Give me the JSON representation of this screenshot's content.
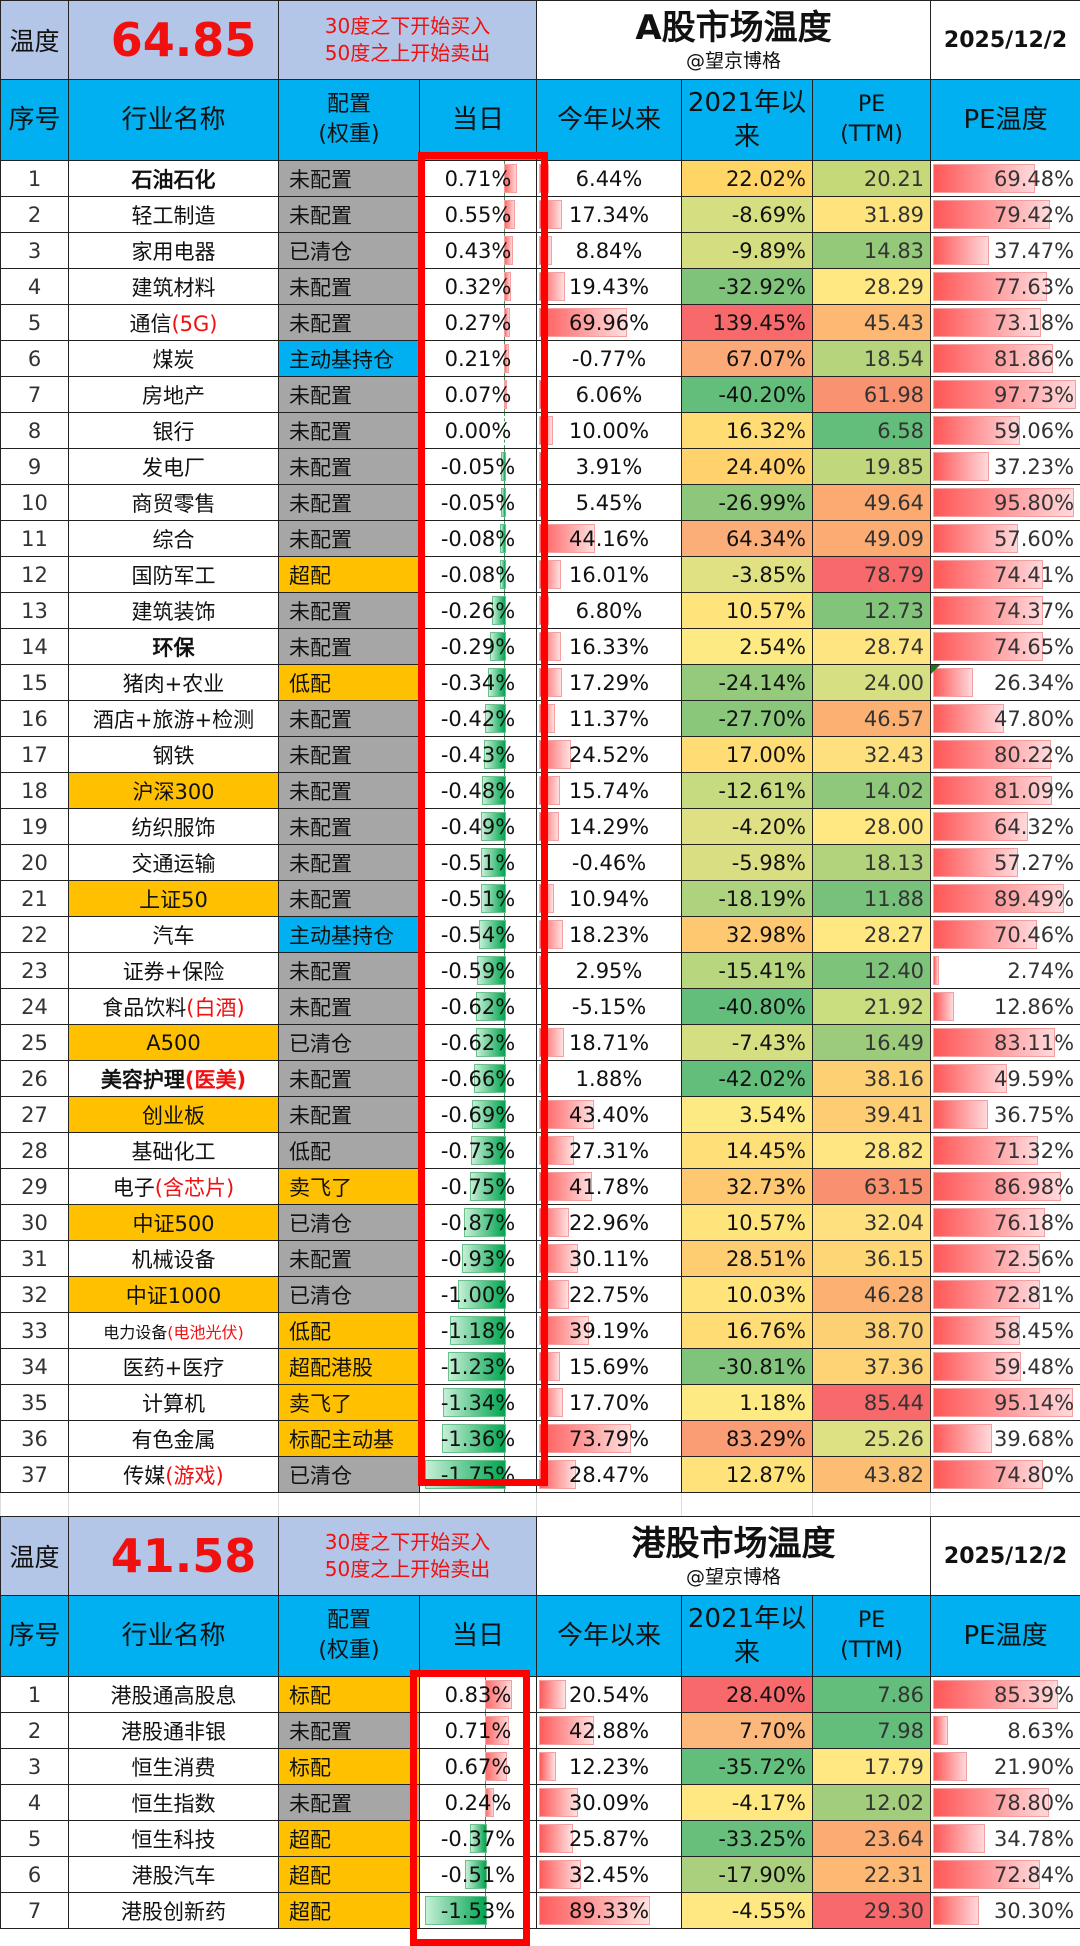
{
  "a_share": {
    "temp_label": "温度",
    "temp_value": "64.85",
    "rule_line1": "30度之下开始买入",
    "rule_line2": "50度之上开始卖出",
    "title": "A股市场温度",
    "author": "@望京博格",
    "date": "2025/12/2",
    "headers": {
      "seq": "序号",
      "name": "行业名称",
      "cfg1": "配置",
      "cfg2": "(权重)",
      "day": "当日",
      "ytd": "今年以来",
      "since1": "2021年以",
      "since2": "来",
      "pe1": "PE",
      "pe2": "(TTM)",
      "pet": "PE温度"
    },
    "rows": [
      {
        "n": "1",
        "name": "石油石化",
        "suffix": "",
        "cfg": "未配置",
        "cfgc": "gray",
        "day": "0.71%",
        "dv": 0.71,
        "ytd": "6.44%",
        "yv": 6.44,
        "since": "22.02%",
        "sc": "#ffd666",
        "pe": "20.21",
        "pc": "#c6d979",
        "pet": "69.48%",
        "tv": 69.48,
        "bold": true
      },
      {
        "n": "2",
        "name": "轻工制造",
        "suffix": "",
        "cfg": "未配置",
        "cfgc": "gray",
        "day": "0.55%",
        "dv": 0.55,
        "ytd": "17.34%",
        "yv": 17.34,
        "since": "-8.69%",
        "sc": "#d6de82",
        "pe": "31.89",
        "pc": "#ffe47e",
        "pet": "79.42%",
        "tv": 79.42
      },
      {
        "n": "3",
        "name": "家用电器",
        "suffix": "",
        "cfg": "已清仓",
        "cfgc": "gray",
        "day": "0.43%",
        "dv": 0.43,
        "ytd": "8.84%",
        "yv": 8.84,
        "since": "-9.89%",
        "sc": "#d4dd80",
        "pe": "14.83",
        "pc": "#94c97a",
        "pet": "37.47%",
        "tv": 37.47
      },
      {
        "n": "4",
        "name": "建筑材料",
        "suffix": "",
        "cfg": "未配置",
        "cfgc": "gray",
        "day": "0.32%",
        "dv": 0.32,
        "ytd": "19.43%",
        "yv": 19.43,
        "since": "-32.92%",
        "sc": "#7fc27a",
        "pe": "28.29",
        "pc": "#ffe882",
        "pet": "77.63%",
        "tv": 77.63
      },
      {
        "n": "5",
        "name": "通信",
        "suffix": "(5G)",
        "cfg": "未配置",
        "cfgc": "gray",
        "day": "0.27%",
        "dv": 0.27,
        "ytd": "69.96%",
        "yv": 69.96,
        "since": "139.45%",
        "sc": "#f8696b",
        "pe": "45.43",
        "pc": "#fdb873",
        "pet": "73.18%",
        "tv": 73.18
      },
      {
        "n": "6",
        "name": "煤炭",
        "suffix": "",
        "cfg": "主动基持仓",
        "cfgc": "blue",
        "day": "0.21%",
        "dv": 0.21,
        "ytd": "-0.77%",
        "yv": 0,
        "since": "67.07%",
        "sc": "#fbaa77",
        "pe": "18.54",
        "pc": "#b5d47c",
        "pet": "81.86%",
        "tv": 81.86
      },
      {
        "n": "7",
        "name": "房地产",
        "suffix": "",
        "cfg": "未配置",
        "cfgc": "gray",
        "day": "0.07%",
        "dv": 0.07,
        "ytd": "6.06%",
        "yv": 6.06,
        "since": "-40.20%",
        "sc": "#63be7b",
        "pe": "61.98",
        "pc": "#f99270",
        "pet": "97.73%",
        "tv": 97.73
      },
      {
        "n": "8",
        "name": "银行",
        "suffix": "",
        "cfg": "未配置",
        "cfgc": "gray",
        "day": "0.00%",
        "dv": 0.0,
        "ytd": "10.00%",
        "yv": 10.0,
        "since": "16.32%",
        "sc": "#ffdd74",
        "pe": "6.58",
        "pc": "#63be7b",
        "pet": "59.06%",
        "tv": 59.06
      },
      {
        "n": "9",
        "name": "发电厂",
        "suffix": "",
        "cfg": "未配置",
        "cfgc": "gray",
        "day": "-0.05%",
        "dv": -0.05,
        "ytd": "3.91%",
        "yv": 3.91,
        "since": "24.40%",
        "sc": "#ffd26c",
        "pe": "19.85",
        "pc": "#c0d77c",
        "pet": "37.23%",
        "tv": 37.23
      },
      {
        "n": "10",
        "name": "商贸零售",
        "suffix": "",
        "cfg": "未配置",
        "cfgc": "gray",
        "day": "-0.05%",
        "dv": -0.05,
        "ytd": "5.45%",
        "yv": 5.45,
        "since": "-26.99%",
        "sc": "#8cc77b",
        "pe": "49.64",
        "pc": "#fcaa72",
        "pet": "95.80%",
        "tv": 95.8
      },
      {
        "n": "11",
        "name": "综合",
        "suffix": "",
        "cfg": "未配置",
        "cfgc": "gray",
        "day": "-0.08%",
        "dv": -0.08,
        "ytd": "44.16%",
        "yv": 44.16,
        "since": "64.34%",
        "sc": "#fcae78",
        "pe": "49.09",
        "pc": "#fcac73",
        "pet": "57.60%",
        "tv": 57.6
      },
      {
        "n": "12",
        "name": "国防军工",
        "suffix": "",
        "cfg": "超配",
        "cfgc": "gold",
        "day": "-0.08%",
        "dv": -0.08,
        "ytd": "16.01%",
        "yv": 16.01,
        "since": "-3.85%",
        "sc": "#e0e183",
        "pe": "78.79",
        "pc": "#f8696b",
        "pet": "74.41%",
        "tv": 74.41
      },
      {
        "n": "13",
        "name": "建筑装饰",
        "suffix": "",
        "cfg": "未配置",
        "cfgc": "gray",
        "day": "-0.26%",
        "dv": -0.26,
        "ytd": "6.80%",
        "yv": 6.8,
        "since": "10.57%",
        "sc": "#ffe47c",
        "pe": "12.73",
        "pc": "#82c47a",
        "pet": "74.37%",
        "tv": 74.37
      },
      {
        "n": "14",
        "name": "环保",
        "suffix": "",
        "cfg": "未配置",
        "cfgc": "gray",
        "day": "-0.29%",
        "dv": -0.29,
        "ytd": "16.33%",
        "yv": 16.33,
        "since": "2.54%",
        "sc": "#feea82",
        "pe": "28.74",
        "pc": "#ffe582",
        "pet": "74.65%",
        "tv": 74.65,
        "bold": true
      },
      {
        "n": "15",
        "name": "猪肉+农业",
        "suffix": "",
        "cfg": "低配",
        "cfgc": "gold",
        "day": "-0.34%",
        "dv": -0.34,
        "ytd": "17.29%",
        "yv": 17.29,
        "since": "-24.14%",
        "sc": "#95ca7c",
        "pe": "24.00",
        "pc": "#d6df82",
        "pet": "26.34%",
        "tv": 26.34,
        "tri": true
      },
      {
        "n": "16",
        "name": "酒店+旅游+检测",
        "suffix": "",
        "cfg": "未配置",
        "cfgc": "gray",
        "day": "-0.42%",
        "dv": -0.42,
        "ytd": "11.37%",
        "yv": 11.37,
        "since": "-27.70%",
        "sc": "#8ac77b",
        "pe": "46.57",
        "pc": "#fcb173",
        "pet": "47.80%",
        "tv": 47.8
      },
      {
        "n": "17",
        "name": "钢铁",
        "suffix": "",
        "cfg": "未配置",
        "cfgc": "gray",
        "day": "-0.43%",
        "dv": -0.43,
        "ytd": "24.52%",
        "yv": 24.52,
        "since": "17.00%",
        "sc": "#ffdc74",
        "pe": "32.43",
        "pc": "#ffe07e",
        "pet": "80.22%",
        "tv": 80.22
      },
      {
        "n": "18",
        "name": "沪深300",
        "suffix": "",
        "idx": true,
        "cfg": "未配置",
        "cfgc": "gray",
        "day": "-0.48%",
        "dv": -0.48,
        "ytd": "15.74%",
        "yv": 15.74,
        "since": "-12.61%",
        "sc": "#c6da80",
        "pe": "14.02",
        "pc": "#8fc87a",
        "pet": "81.09%",
        "tv": 81.09
      },
      {
        "n": "19",
        "name": "纺织服饰",
        "suffix": "",
        "cfg": "未配置",
        "cfgc": "gray",
        "day": "-0.49%",
        "dv": -0.49,
        "ytd": "14.29%",
        "yv": 14.29,
        "since": "-4.20%",
        "sc": "#dfe083",
        "pe": "28.00",
        "pc": "#ffe882",
        "pet": "64.32%",
        "tv": 64.32
      },
      {
        "n": "20",
        "name": "交通运输",
        "suffix": "",
        "cfg": "未配置",
        "cfgc": "gray",
        "day": "-0.51%",
        "dv": -0.51,
        "ytd": "-0.46%",
        "yv": 0,
        "since": "-5.98%",
        "sc": "#d9de82",
        "pe": "18.13",
        "pc": "#b2d37c",
        "pet": "57.27%",
        "tv": 57.27
      },
      {
        "n": "21",
        "name": "上证50",
        "suffix": "",
        "idx": true,
        "cfg": "未配置",
        "cfgc": "gray",
        "day": "-0.51%",
        "dv": -0.51,
        "ytd": "10.94%",
        "yv": 10.94,
        "since": "-18.19%",
        "sc": "#aed27d",
        "pe": "11.88",
        "pc": "#78c17a",
        "pet": "89.49%",
        "tv": 89.49
      },
      {
        "n": "22",
        "name": "汽车",
        "suffix": "",
        "cfg": "主动基持仓",
        "cfgc": "blue",
        "day": "-0.54%",
        "dv": -0.54,
        "ytd": "18.23%",
        "yv": 18.23,
        "since": "32.98%",
        "sc": "#fec870",
        "pe": "28.27",
        "pc": "#ffe882",
        "pet": "70.46%",
        "tv": 70.46
      },
      {
        "n": "23",
        "name": "证券+保险",
        "suffix": "",
        "cfg": "未配置",
        "cfgc": "gray",
        "day": "-0.59%",
        "dv": -0.59,
        "ytd": "2.95%",
        "yv": 2.95,
        "since": "-15.41%",
        "sc": "#b8d67e",
        "pe": "12.40",
        "pc": "#7ec37a",
        "pet": "2.74%",
        "tv": 2.74
      },
      {
        "n": "24",
        "name": "食品饮料",
        "suffix": "(白酒)",
        "cfg": "未配置",
        "cfgc": "gray",
        "day": "-0.62%",
        "dv": -0.62,
        "ytd": "-5.15%",
        "yv": 0,
        "since": "-40.80%",
        "sc": "#63be7b",
        "pe": "21.92",
        "pc": "#cade80",
        "pet": "12.86%",
        "tv": 12.86
      },
      {
        "n": "25",
        "name": "A500",
        "suffix": "",
        "idx": true,
        "cfg": "已清仓",
        "cfgc": "gray",
        "day": "-0.62%",
        "dv": -0.62,
        "ytd": "18.71%",
        "yv": 18.71,
        "since": "-7.43%",
        "sc": "#d6de82",
        "pe": "16.49",
        "pc": "#9ccb7b",
        "pet": "83.11%",
        "tv": 83.11
      },
      {
        "n": "26",
        "name": "美容护理",
        "suffix": "(医美)",
        "cfg": "未配置",
        "cfgc": "gray",
        "day": "-0.66%",
        "dv": -0.66,
        "ytd": "1.88%",
        "yv": 1.88,
        "since": "-42.02%",
        "sc": "#63be7b",
        "pe": "38.16",
        "pc": "#fed074",
        "pet": "49.59%",
        "tv": 49.59,
        "bold": true
      },
      {
        "n": "27",
        "name": "创业板",
        "suffix": "",
        "idx": true,
        "cfg": "未配置",
        "cfgc": "gray",
        "day": "-0.69%",
        "dv": -0.69,
        "ytd": "43.40%",
        "yv": 43.4,
        "since": "3.54%",
        "sc": "#feea82",
        "pe": "39.41",
        "pc": "#fecd73",
        "pet": "36.75%",
        "tv": 36.75
      },
      {
        "n": "28",
        "name": "基础化工",
        "suffix": "",
        "cfg": "低配",
        "cfgc": "gray",
        "day": "-0.73%",
        "dv": -0.73,
        "ytd": "27.31%",
        "yv": 27.31,
        "since": "14.45%",
        "sc": "#ffe078",
        "pe": "28.82",
        "pc": "#ffe682",
        "pet": "71.32%",
        "tv": 71.32
      },
      {
        "n": "29",
        "name": "电子",
        "suffix": "(含芯片)",
        "cfg": "卖飞了",
        "cfgc": "gold",
        "day": "-0.75%",
        "dv": -0.75,
        "ytd": "41.78%",
        "yv": 41.78,
        "since": "32.73%",
        "sc": "#fec870",
        "pe": "63.15",
        "pc": "#f99070",
        "pet": "86.98%",
        "tv": 86.98
      },
      {
        "n": "30",
        "name": "中证500",
        "suffix": "",
        "idx": true,
        "cfg": "已清仓",
        "cfgc": "gray",
        "day": "-0.87%",
        "dv": -0.87,
        "ytd": "22.96%",
        "yv": 22.96,
        "since": "10.57%",
        "sc": "#ffe47c",
        "pe": "32.04",
        "pc": "#ffe07e",
        "pet": "76.18%",
        "tv": 76.18
      },
      {
        "n": "31",
        "name": "机械设备",
        "suffix": "",
        "cfg": "未配置",
        "cfgc": "gray",
        "day": "-0.93%",
        "dv": -0.93,
        "ytd": "30.11%",
        "yv": 30.11,
        "since": "28.51%",
        "sc": "#fecd72",
        "pe": "36.15",
        "pc": "#fed676",
        "pet": "72.56%",
        "tv": 72.56
      },
      {
        "n": "32",
        "name": "中证1000",
        "suffix": "",
        "idx": true,
        "cfg": "已清仓",
        "cfgc": "gray",
        "day": "-1.00%",
        "dv": -1.0,
        "ytd": "22.75%",
        "yv": 22.75,
        "since": "10.03%",
        "sc": "#ffe47c",
        "pe": "46.28",
        "pc": "#fcb173",
        "pet": "72.81%",
        "tv": 72.81
      },
      {
        "n": "33",
        "name": "电力设备",
        "suffix": "(电池光伏)",
        "sm": true,
        "cfg": "低配",
        "cfgc": "gold",
        "day": "-1.18%",
        "dv": -1.18,
        "ytd": "39.19%",
        "yv": 39.19,
        "since": "16.76%",
        "sc": "#ffdd74",
        "pe": "38.70",
        "pc": "#fed074",
        "pet": "58.45%",
        "tv": 58.45
      },
      {
        "n": "34",
        "name": "医药+医疗",
        "suffix": "",
        "cfg": "超配港股",
        "cfgc": "gold",
        "day": "-1.23%",
        "dv": -1.23,
        "ytd": "15.69%",
        "yv": 15.69,
        "since": "-30.81%",
        "sc": "#80c37a",
        "pe": "37.36",
        "pc": "#fed375",
        "pet": "59.48%",
        "tv": 59.48
      },
      {
        "n": "35",
        "name": "计算机",
        "suffix": "",
        "cfg": "卖飞了",
        "cfgc": "gold",
        "day": "-1.34%",
        "dv": -1.34,
        "ytd": "17.70%",
        "yv": 17.7,
        "since": "1.18%",
        "sc": "#feea82",
        "pe": "85.44",
        "pc": "#f8696b",
        "pet": "95.14%",
        "tv": 95.14
      },
      {
        "n": "36",
        "name": "有色金属",
        "suffix": "",
        "cfg": "标配主动基",
        "cfgc": "gold",
        "day": "-1.36%",
        "dv": -1.36,
        "ytd": "73.79%",
        "yv": 73.79,
        "since": "83.29%",
        "sc": "#fa9d75",
        "pe": "25.26",
        "pc": "#dde083",
        "pet": "39.68%",
        "tv": 39.68
      },
      {
        "n": "37",
        "name": "传媒",
        "suffix": "(游戏)",
        "cfg": "已清仓",
        "cfgc": "gray",
        "day": "-1.75%",
        "dv": -1.75,
        "ytd": "28.47%",
        "yv": 28.47,
        "since": "12.87%",
        "sc": "#ffe27a",
        "pe": "43.82",
        "pc": "#fdbe74",
        "pet": "74.80%",
        "tv": 74.8
      }
    ]
  },
  "hk_share": {
    "temp_label": "温度",
    "temp_value": "41.58",
    "rule_line1": "30度之下开始买入",
    "rule_line2": "50度之上开始卖出",
    "title": "港股市场温度",
    "author": "@望京博格",
    "date": "2025/12/2",
    "headers": {
      "seq": "序号",
      "name": "行业名称",
      "cfg1": "配置",
      "cfg2": "(权重)",
      "day": "当日",
      "ytd": "今年以来",
      "since1": "2021年以",
      "since2": "来",
      "pe1": "PE",
      "pe2": "(TTM)",
      "pet": "PE温度"
    },
    "rows": [
      {
        "n": "1",
        "name": "港股通高股息",
        "suffix": "",
        "cfg": "标配",
        "cfgc": "gold",
        "day": "0.83%",
        "dv": 0.83,
        "ytd": "20.54%",
        "yv": 20.54,
        "since": "28.40%",
        "sc": "#f8696b",
        "pe": "7.86",
        "pc": "#63be7b",
        "pet": "85.39%",
        "tv": 85.39
      },
      {
        "n": "2",
        "name": "港股通非银",
        "suffix": "",
        "cfg": "未配置",
        "cfgc": "gray",
        "day": "0.71%",
        "dv": 0.71,
        "ytd": "42.88%",
        "yv": 42.88,
        "since": "7.70%",
        "sc": "#fcb77a",
        "pe": "7.98",
        "pc": "#64be7b",
        "pet": "8.63%",
        "tv": 8.63
      },
      {
        "n": "3",
        "name": "恒生消费",
        "suffix": "",
        "cfg": "标配",
        "cfgc": "gold",
        "day": "0.67%",
        "dv": 0.67,
        "ytd": "12.23%",
        "yv": 12.23,
        "since": "-35.72%",
        "sc": "#63be7b",
        "pe": "17.79",
        "pc": "#ffe882",
        "pet": "21.90%",
        "tv": 21.9
      },
      {
        "n": "4",
        "name": "恒生指数",
        "suffix": "",
        "cfg": "未配置",
        "cfgc": "gray",
        "day": "0.24%",
        "dv": 0.24,
        "ytd": "30.09%",
        "yv": 30.09,
        "since": "-4.17%",
        "sc": "#ffe882",
        "pe": "12.02",
        "pc": "#a2cd7c",
        "pet": "78.80%",
        "tv": 78.8
      },
      {
        "n": "5",
        "name": "恒生科技",
        "suffix": "",
        "cfg": "超配",
        "cfgc": "gold",
        "day": "-0.37%",
        "dv": -0.37,
        "ytd": "25.87%",
        "yv": 25.87,
        "since": "-33.25%",
        "sc": "#68bf7b",
        "pe": "23.64",
        "pc": "#fcac73",
        "pet": "34.78%",
        "tv": 34.78
      },
      {
        "n": "6",
        "name": "港股汽车",
        "suffix": "",
        "cfg": "超配",
        "cfgc": "gold",
        "day": "-0.51%",
        "dv": -0.51,
        "ytd": "32.45%",
        "yv": 32.45,
        "since": "-17.90%",
        "sc": "#aad07d",
        "pe": "22.31",
        "pc": "#fdb874",
        "pet": "72.84%",
        "tv": 72.84
      },
      {
        "n": "7",
        "name": "港股创新药",
        "suffix": "",
        "cfg": "超配",
        "cfgc": "gold",
        "day": "-1.53%",
        "dv": -1.53,
        "ytd": "89.33%",
        "yv": 89.33,
        "since": "-4.55%",
        "sc": "#ffe882",
        "pe": "29.30",
        "pc": "#f8696b",
        "pet": "30.30%",
        "tv": 30.3
      }
    ]
  },
  "colors": {
    "header_blue": "#00b0f0",
    "title_lavender": "#b4c6e7",
    "gold": "#ffc000",
    "gray": "#a6a6a6",
    "red": "#f01010",
    "highlight_box": "#ff0000"
  }
}
